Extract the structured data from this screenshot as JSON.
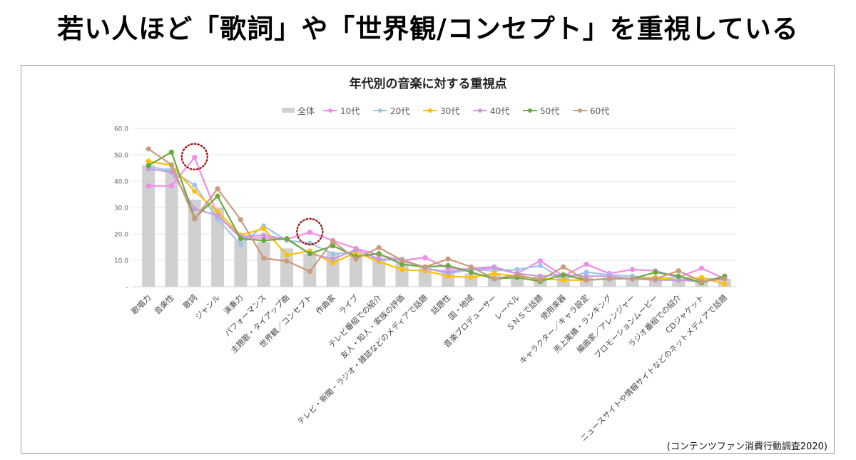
{
  "headline": "若い人ほど「歌詞」や「世界観/コンセプト」を重視している",
  "source_note": "(コンテンツファン消費行動調査2020)",
  "chart_data": {
    "type": "bar+line",
    "title": "年代別の音楽に対する重視点",
    "xlabel": "",
    "ylabel": "",
    "ylim": [
      0,
      60
    ],
    "yticks": [
      0,
      10,
      20,
      30,
      40,
      50,
      60
    ],
    "ytick_labels": [
      "-",
      "10.0",
      "20.0",
      "30.0",
      "40.0",
      "50.0",
      "60.0"
    ],
    "grid": true,
    "legend_position": "top-center",
    "highlight_circles": [
      "歌詞 / 10代",
      "世界観／コンセプト / 10代"
    ],
    "categories": [
      "歌唱力",
      "音楽性",
      "歌詞",
      "ジャンル",
      "演奏力",
      "パフォーマンス",
      "主題歌・タイアップ曲",
      "世界観／コンセプト",
      "作曲家",
      "ライブ",
      "テレビ番組での紹介",
      "友人・知人・家族の評価",
      "テレビ・新聞・ラジオ・雑誌などのメディアで話題",
      "話題性",
      "国・地域",
      "音楽プロデューサー",
      "レーベル",
      "ＳＮＳで話題",
      "使用楽器",
      "キャラクター／キャラ設定",
      "売上実績・ランキング",
      "編曲家／アレンジャー",
      "プロモーションムービー",
      "ラジオ番組での紹介",
      "CDジャケット",
      "ニュースサイトや情報サイトなどのネットメディアで話題"
    ],
    "series": [
      {
        "name": "全体",
        "kind": "bar",
        "color": "#d0d0d0",
        "values": [
          46.0,
          45.0,
          33.0,
          30.0,
          17.5,
          17.0,
          14.5,
          12.5,
          13.0,
          11.5,
          10.5,
          9.5,
          7.0,
          6.5,
          5.0,
          4.5,
          4.0,
          4.0,
          3.5,
          3.5,
          3.5,
          3.0,
          3.0,
          2.5,
          2.5,
          3.0
        ]
      },
      {
        "name": "10代",
        "kind": "line",
        "color": "#f28ce8",
        "values": [
          38.2,
          38.2,
          49.0,
          27.0,
          18.5,
          18.5,
          18.0,
          20.6,
          17.5,
          14.5,
          12.0,
          10.0,
          11.0,
          7.0,
          6.5,
          7.0,
          5.0,
          9.8,
          4.0,
          8.5,
          5.0,
          6.5,
          6.0,
          3.5,
          7.0,
          3.0
        ]
      },
      {
        "name": "20代",
        "kind": "line",
        "color": "#9ec5e8",
        "values": [
          45.5,
          44.0,
          38.5,
          25.5,
          16.0,
          23.0,
          17.5,
          16.5,
          12.5,
          13.0,
          10.0,
          10.5,
          7.0,
          5.0,
          6.5,
          6.0,
          6.5,
          8.0,
          3.0,
          5.5,
          4.5,
          4.0,
          3.0,
          3.5,
          3.0,
          3.0
        ]
      },
      {
        "name": "30代",
        "kind": "line",
        "color": "#ffc000",
        "values": [
          47.5,
          46.0,
          36.2,
          28.5,
          19.5,
          22.0,
          12.0,
          13.5,
          9.0,
          13.0,
          9.5,
          6.5,
          6.0,
          4.0,
          3.5,
          5.0,
          4.0,
          3.0,
          2.5,
          2.5,
          3.0,
          3.0,
          3.5,
          2.5,
          3.5,
          1.0
        ]
      },
      {
        "name": "40代",
        "kind": "line",
        "color": "#c89be0",
        "values": [
          44.6,
          43.5,
          29.5,
          27.0,
          19.0,
          19.5,
          18.0,
          12.5,
          10.5,
          14.0,
          10.5,
          10.0,
          7.0,
          5.5,
          7.0,
          7.5,
          5.0,
          4.0,
          4.5,
          4.0,
          4.0,
          3.0,
          2.5,
          2.5,
          2.0,
          3.5
        ]
      },
      {
        "name": "50代",
        "kind": "line",
        "color": "#6aab3f",
        "values": [
          45.9,
          51.0,
          26.0,
          34.3,
          18.2,
          17.5,
          18.2,
          12.5,
          15.5,
          11.5,
          12.5,
          8.5,
          7.5,
          8.0,
          5.5,
          3.0,
          3.5,
          2.0,
          4.5,
          2.5,
          3.0,
          3.0,
          5.5,
          4.0,
          1.5,
          4.0
        ]
      },
      {
        "name": "60代",
        "kind": "line",
        "color": "#cc9a7c",
        "values": [
          52.2,
          46.2,
          25.7,
          37.1,
          25.4,
          10.8,
          9.7,
          5.8,
          17.2,
          10.5,
          14.8,
          10.0,
          7.5,
          10.5,
          7.5,
          3.0,
          4.5,
          2.5,
          7.5,
          2.5,
          3.0,
          3.0,
          3.0,
          6.0,
          2.0,
          3.0
        ]
      }
    ]
  }
}
